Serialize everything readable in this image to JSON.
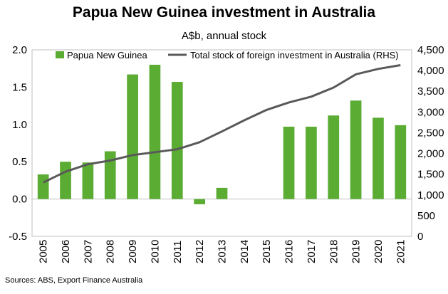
{
  "chart_data": {
    "type": "bar",
    "title": "Papua New Guinea investment in Australia",
    "subtitle": "A$b, annual stock",
    "source": "Sources: ABS, Export Finance Australia",
    "categories": [
      "2005",
      "2006",
      "2007",
      "2008",
      "2009",
      "2010",
      "2011",
      "2012",
      "2013",
      "2014",
      "2015",
      "2016",
      "2017",
      "2018",
      "2019",
      "2020",
      "2021"
    ],
    "series": [
      {
        "name": "Papua New Guinea",
        "type": "bar",
        "axis": "left",
        "color": "#5aac33",
        "values": [
          0.33,
          0.5,
          0.49,
          0.64,
          1.67,
          1.8,
          1.57,
          -0.07,
          0.15,
          null,
          null,
          0.97,
          0.97,
          1.12,
          1.32,
          1.09,
          0.99
        ]
      },
      {
        "name": "Total stock of foreign investment in Australia (RHS)",
        "type": "line",
        "axis": "right",
        "color": "#595959",
        "values": [
          1300,
          1560,
          1740,
          1830,
          1960,
          2030,
          2100,
          2270,
          2530,
          2800,
          3050,
          3230,
          3370,
          3590,
          3910,
          4040,
          4130
        ]
      }
    ],
    "yleft": {
      "min": -0.5,
      "max": 2.0,
      "ticks": [
        "-0.5",
        "0.0",
        "0.5",
        "1.0",
        "1.5",
        "2.0"
      ]
    },
    "yright": {
      "min": 0,
      "max": 4500,
      "ticks": [
        "0",
        "500",
        "1,000",
        "1,500",
        "2,000",
        "2,500",
        "3,000",
        "3,500",
        "4,000",
        "4,500"
      ]
    },
    "grid": false,
    "legend": "top"
  }
}
